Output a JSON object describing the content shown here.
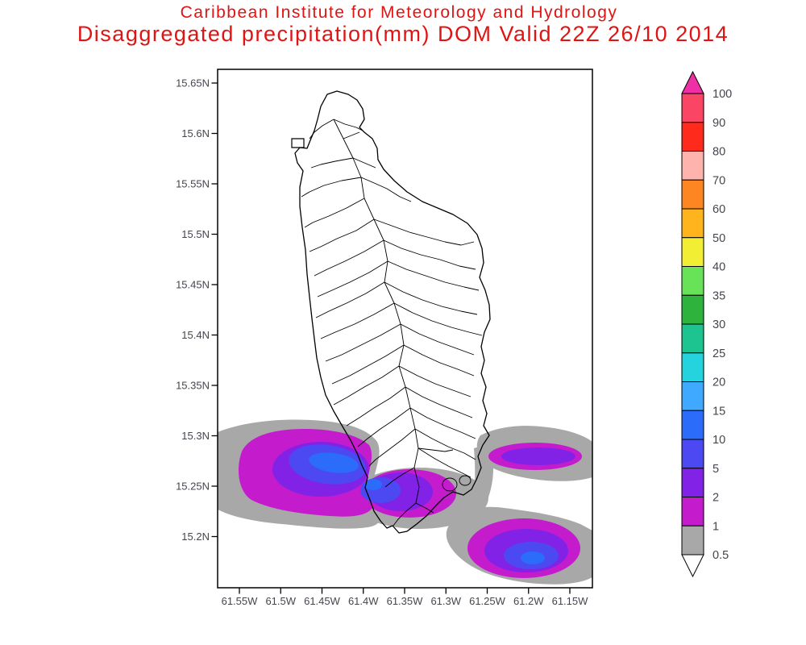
{
  "header": {
    "line1": "Caribbean Institute for Meteorology and Hydrology",
    "line2": "Disaggregated precipitation(mm) DOM Valid 22Z 26/10 2014",
    "color": "#e11414"
  },
  "chart_data": {
    "type": "heatmap",
    "title": "Disaggregated precipitation(mm) DOM Valid 22Z 26/10 2014",
    "institute": "Caribbean Institute for Meteorology and Hydrology",
    "units": "mm",
    "region": "Dominica (DOM)",
    "valid_time": "22Z 26/10 2014",
    "x_axis": {
      "labels": [
        "61.55W",
        "61.5W",
        "61.45W",
        "61.4W",
        "61.35W",
        "61.3W",
        "61.25W",
        "61.2W",
        "61.15W"
      ]
    },
    "y_axis": {
      "labels": [
        "15.65N",
        "15.6N",
        "15.55N",
        "15.5N",
        "15.45N",
        "15.4N",
        "15.35N",
        "15.3N",
        "15.25N",
        "15.2N"
      ]
    },
    "axis_label_color": "#45454f",
    "colorbar": {
      "levels": [
        0.5,
        1,
        2,
        5,
        10,
        15,
        20,
        25,
        30,
        35,
        40,
        50,
        60,
        70,
        80,
        90,
        100
      ],
      "colors": [
        "#ffffff",
        "#a8a8a8",
        "#c41ccd",
        "#8222e6",
        "#4d49f2",
        "#2b6cfa",
        "#3fa8ff",
        "#24d3de",
        "#1dc48f",
        "#2eb43c",
        "#68e257",
        "#f2ee33",
        "#ffb31c",
        "#fe8622",
        "#ffb3ad",
        "#fe2b1c",
        "#fb4565",
        "#ee2fa5"
      ]
    },
    "precip_maxima": [
      {
        "area": "southwest of Dominica near 61.44W 15.27N",
        "value_band_mm": "10-15"
      },
      {
        "area": "southern tip of Dominica near 61.39W 15.25N",
        "value_band_mm": "10-15"
      },
      {
        "area": "east arm 61.25W-61.15W near 15.28N",
        "value_band_mm": "2-5"
      },
      {
        "area": "southeast blob near 61.20W 15.17N",
        "value_band_mm": "10-15"
      }
    ]
  }
}
